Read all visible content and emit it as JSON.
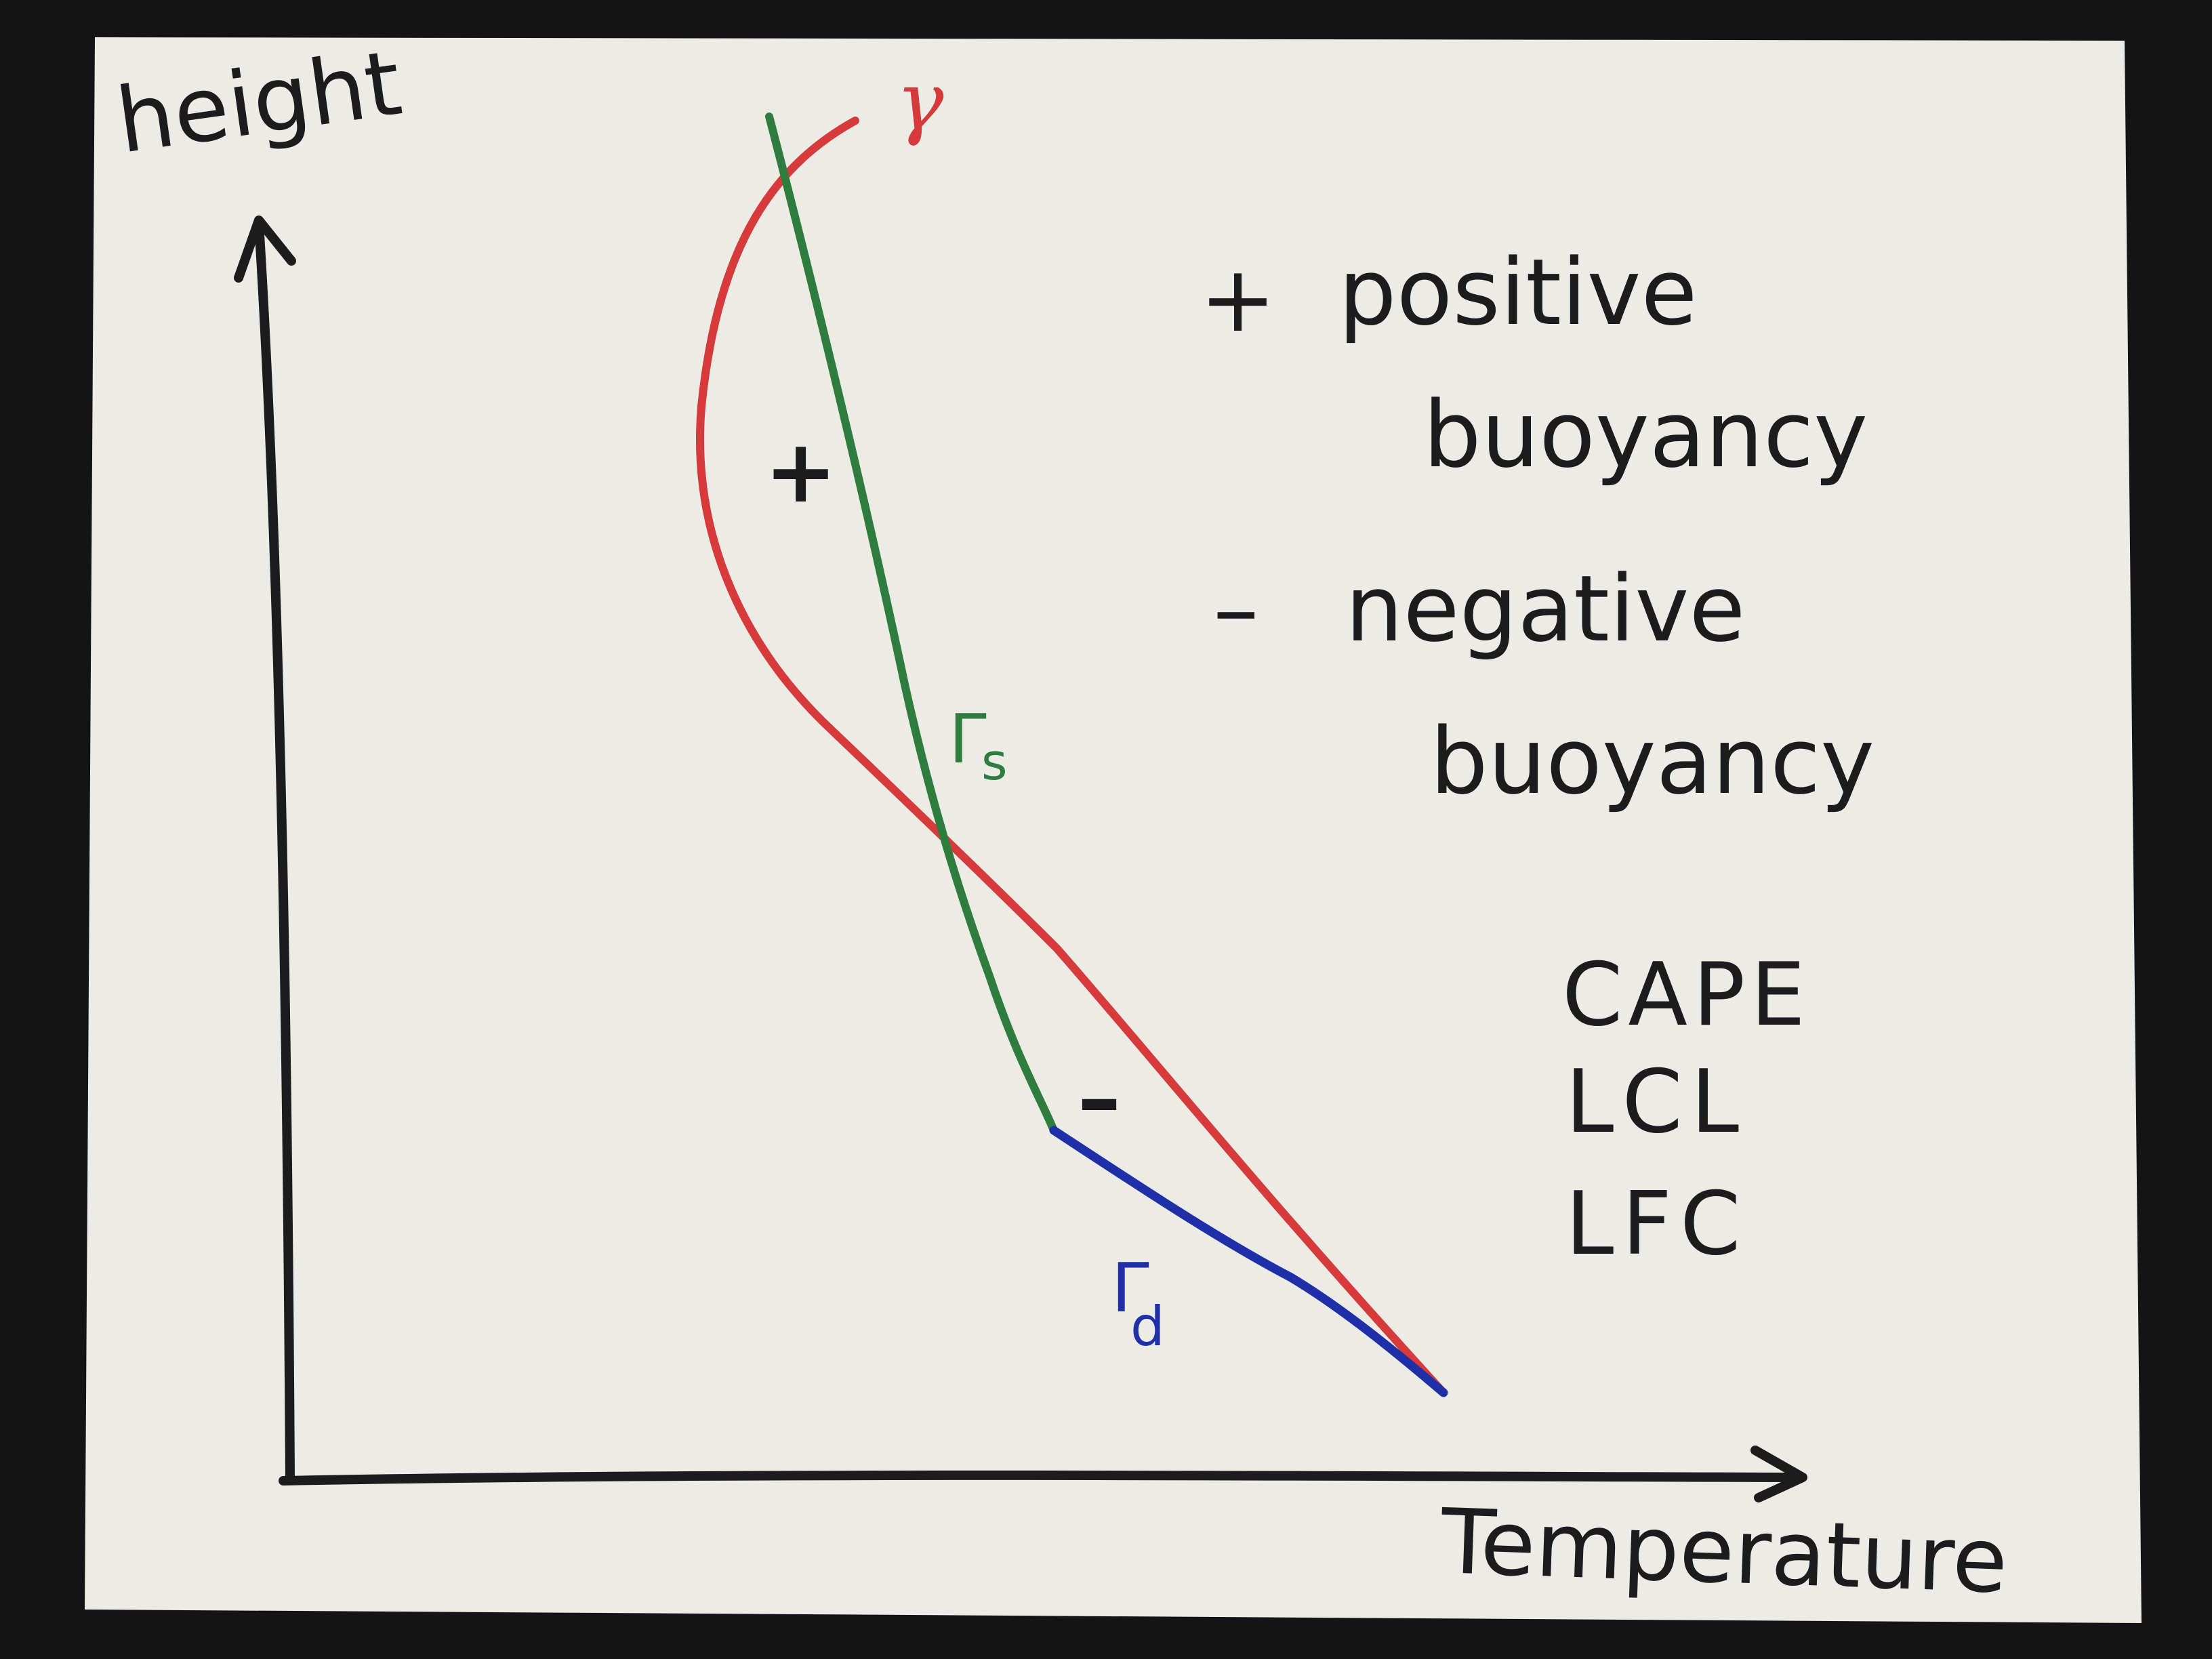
{
  "colors": {
    "paper": "#ecebe6",
    "background": "#141414",
    "ink_black": "#1c1c1c",
    "environment_red": "#d63a3a",
    "saturated_green": "#2e7d3e",
    "dry_blue": "#1f2fa8"
  },
  "axes": {
    "y_label": "height",
    "x_label": "Temperature"
  },
  "curve_labels": {
    "environment": "γ",
    "saturated_adiabat_symbol": "Γ",
    "saturated_adiabat_sub": "s",
    "dry_adiabat_symbol": "Γ",
    "dry_adiabat_sub": "d"
  },
  "region_marks": {
    "positive": "+",
    "negative": "–"
  },
  "legend": {
    "positive_sign": "+",
    "positive_line1": "positive",
    "positive_line2": "buoyancy",
    "negative_sign": "–",
    "negative_line1": "negative",
    "negative_line2": "buoyancy"
  },
  "terms": [
    "CAPE",
    "LCL",
    "LFC"
  ]
}
